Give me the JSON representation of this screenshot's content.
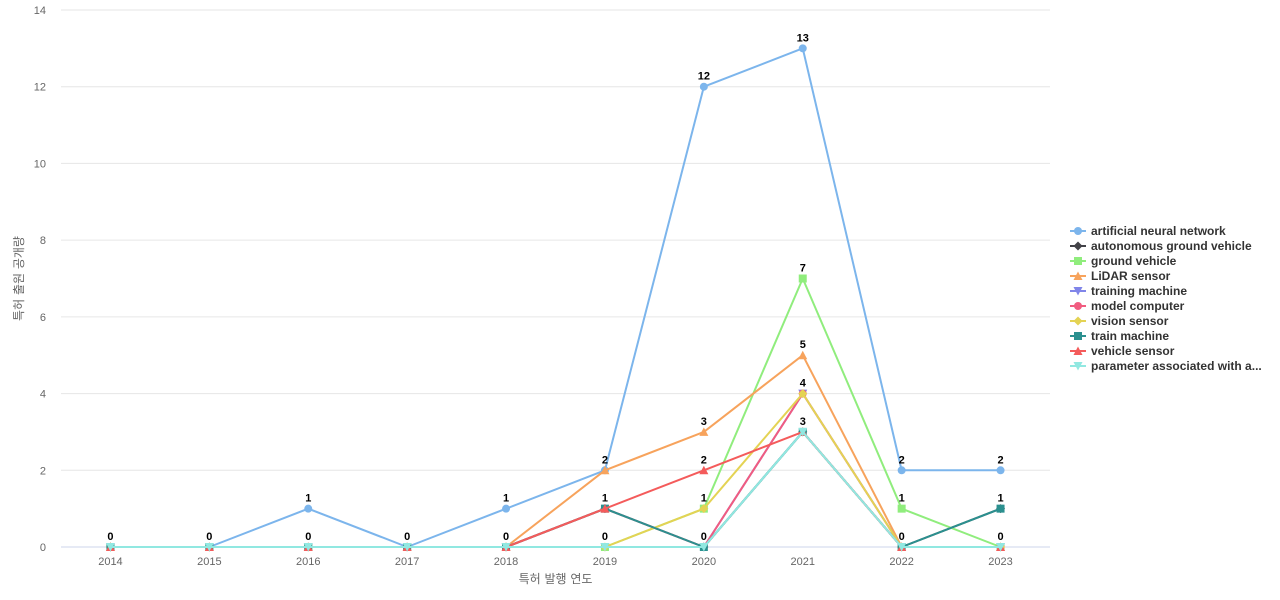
{
  "chart_data": {
    "type": "line",
    "title": "",
    "xlabel": "특허 발행 연도",
    "ylabel": "특허 출원 공개량",
    "categories": [
      "2014",
      "2015",
      "2016",
      "2017",
      "2018",
      "2019",
      "2020",
      "2021",
      "2022",
      "2023"
    ],
    "ylim": [
      0,
      14
    ],
    "yticks": [
      0,
      2,
      4,
      6,
      8,
      10,
      12,
      14
    ],
    "grid": true,
    "legend_position": "right",
    "series": [
      {
        "name": "artificial neural network",
        "legend_label": "artificial neural network",
        "color": "#7cb5ec",
        "marker": "circle",
        "values": [
          0,
          0,
          1,
          0,
          1,
          2,
          12,
          13,
          2,
          2
        ]
      },
      {
        "name": "autonomous ground vehicle",
        "legend_label": "autonomous ground vehicle",
        "color": "#434348",
        "marker": "diamond",
        "values": [
          0,
          0,
          0,
          0,
          0,
          1,
          0,
          3,
          0,
          1
        ]
      },
      {
        "name": "ground vehicle",
        "legend_label": "ground vehicle",
        "color": "#90ed7d",
        "marker": "square",
        "values": [
          0,
          0,
          0,
          0,
          0,
          0,
          1,
          7,
          1,
          0
        ]
      },
      {
        "name": "LiDAR sensor",
        "legend_label": "LiDAR sensor",
        "color": "#f7a35c",
        "marker": "triangle",
        "values": [
          0,
          0,
          0,
          0,
          0,
          2,
          3,
          5,
          0,
          0
        ]
      },
      {
        "name": "training machine",
        "legend_label": "training machine",
        "color": "#8085e9",
        "marker": "triangle-down",
        "values": [
          0,
          0,
          0,
          0,
          0,
          0,
          0,
          4,
          0,
          0
        ]
      },
      {
        "name": "model computer",
        "legend_label": "model computer",
        "color": "#f15c80",
        "marker": "circle",
        "values": [
          0,
          0,
          0,
          0,
          0,
          1,
          0,
          4,
          0,
          0
        ]
      },
      {
        "name": "vision sensor",
        "legend_label": "vision sensor",
        "color": "#e4d354",
        "marker": "diamond",
        "values": [
          0,
          0,
          0,
          0,
          0,
          0,
          1,
          4,
          0,
          0
        ]
      },
      {
        "name": "train machine",
        "legend_label": "train machine",
        "color": "#2b908f",
        "marker": "square",
        "values": [
          0,
          0,
          0,
          0,
          0,
          1,
          0,
          3,
          0,
          1
        ]
      },
      {
        "name": "vehicle sensor",
        "legend_label": "vehicle sensor",
        "color": "#f45b5b",
        "marker": "triangle",
        "values": [
          0,
          0,
          0,
          0,
          0,
          1,
          2,
          3,
          0,
          0
        ]
      },
      {
        "name": "parameter associated with a...",
        "legend_label": "parameter associated with a...",
        "color": "#91e8e1",
        "marker": "triangle-down",
        "values": [
          0,
          0,
          0,
          0,
          0,
          0,
          0,
          3,
          0,
          0
        ]
      }
    ],
    "data_labels": [
      {
        "category": "2014",
        "value": 0,
        "text": "0"
      },
      {
        "category": "2015",
        "value": 0,
        "text": "0"
      },
      {
        "category": "2016",
        "value": 1,
        "text": "1"
      },
      {
        "category": "2016",
        "value": 0,
        "text": "0"
      },
      {
        "category": "2017",
        "value": 0,
        "text": "0"
      },
      {
        "category": "2018",
        "value": 1,
        "text": "1"
      },
      {
        "category": "2018",
        "value": 0,
        "text": "0"
      },
      {
        "category": "2019",
        "value": 2,
        "text": "2"
      },
      {
        "category": "2019",
        "value": 1,
        "text": "1"
      },
      {
        "category": "2019",
        "value": 0,
        "text": "0"
      },
      {
        "category": "2020",
        "value": 12,
        "text": "12"
      },
      {
        "category": "2020",
        "value": 3,
        "text": "3"
      },
      {
        "category": "2020",
        "value": 2,
        "text": "2"
      },
      {
        "category": "2020",
        "value": 1,
        "text": "1"
      },
      {
        "category": "2020",
        "value": 0,
        "text": "0"
      },
      {
        "category": "2021",
        "value": 13,
        "text": "13"
      },
      {
        "category": "2021",
        "value": 7,
        "text": "7"
      },
      {
        "category": "2021",
        "value": 5,
        "text": "5"
      },
      {
        "category": "2021",
        "value": 4,
        "text": "4"
      },
      {
        "category": "2021",
        "value": 3,
        "text": "3"
      },
      {
        "category": "2022",
        "value": 2,
        "text": "2"
      },
      {
        "category": "2022",
        "value": 1,
        "text": "1"
      },
      {
        "category": "2022",
        "value": 0,
        "text": "0"
      },
      {
        "category": "2023",
        "value": 2,
        "text": "2"
      },
      {
        "category": "2023",
        "value": 1,
        "text": "1"
      },
      {
        "category": "2023",
        "value": 0,
        "text": "0"
      }
    ]
  }
}
